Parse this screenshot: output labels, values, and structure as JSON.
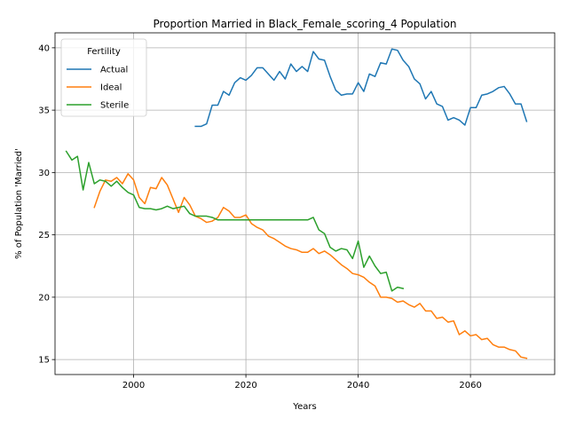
{
  "chart_data": {
    "type": "line",
    "title": "Proportion Married in Black_Female_scoring_4 Population",
    "xlabel": "Years",
    "ylabel": "% of Population 'Married'",
    "xlim": [
      1986,
      2075
    ],
    "ylim": [
      13.8,
      41.2
    ],
    "xticks": [
      2000,
      2020,
      2040,
      2060
    ],
    "yticks": [
      15,
      20,
      25,
      30,
      35,
      40
    ],
    "grid": true,
    "legend": {
      "title": "Fertility",
      "placement": "top-left"
    },
    "series": [
      {
        "name": "Actual",
        "color": "#1f77b4",
        "x": [
          2011,
          2012,
          2013,
          2014,
          2015,
          2016,
          2017,
          2018,
          2019,
          2020,
          2021,
          2022,
          2023,
          2024,
          2025,
          2026,
          2027,
          2028,
          2029,
          2030,
          2031,
          2032,
          2033,
          2034,
          2035,
          2036,
          2037,
          2038,
          2039,
          2040,
          2041,
          2042,
          2043,
          2044,
          2045,
          2046,
          2047,
          2048,
          2049,
          2050,
          2051,
          2052,
          2053,
          2054,
          2055,
          2056,
          2057,
          2058,
          2059,
          2060,
          2061,
          2062,
          2063,
          2064,
          2065,
          2066,
          2067,
          2068,
          2069,
          2070
        ],
        "y": [
          33.7,
          33.7,
          33.9,
          35.4,
          35.4,
          36.5,
          36.2,
          37.2,
          37.6,
          37.4,
          37.8,
          38.4,
          38.4,
          37.9,
          37.4,
          38.1,
          37.5,
          38.7,
          38.1,
          38.5,
          38.1,
          39.7,
          39.1,
          39.0,
          37.7,
          36.6,
          36.2,
          36.3,
          36.3,
          37.2,
          36.5,
          37.9,
          37.7,
          38.8,
          38.7,
          39.9,
          39.8,
          39.0,
          38.5,
          37.5,
          37.1,
          35.9,
          36.5,
          35.5,
          35.3,
          34.2,
          34.4,
          34.2,
          33.8,
          35.2,
          35.2,
          36.2,
          36.3,
          36.5,
          36.8,
          36.9,
          36.3,
          35.5,
          35.5,
          34.1
        ]
      },
      {
        "name": "Ideal",
        "color": "#ff7f0e",
        "x": [
          1993,
          1994,
          1995,
          1996,
          1997,
          1998,
          1999,
          2000,
          2001,
          2002,
          2003,
          2004,
          2005,
          2006,
          2007,
          2008,
          2009,
          2010,
          2011,
          2012,
          2013,
          2014,
          2015,
          2016,
          2017,
          2018,
          2019,
          2020,
          2021,
          2022,
          2023,
          2024,
          2025,
          2026,
          2027,
          2028,
          2029,
          2030,
          2031,
          2032,
          2033,
          2034,
          2035,
          2036,
          2037,
          2038,
          2039,
          2040,
          2041,
          2042,
          2043,
          2044,
          2045,
          2046,
          2047,
          2048,
          2049,
          2050,
          2051,
          2052,
          2053,
          2054,
          2055,
          2056,
          2057,
          2058,
          2059,
          2060,
          2061,
          2062,
          2063,
          2064,
          2065,
          2066,
          2067,
          2068,
          2069,
          2070
        ],
        "y": [
          27.2,
          28.5,
          29.4,
          29.3,
          29.6,
          29.1,
          29.9,
          29.4,
          28.0,
          27.5,
          28.8,
          28.7,
          29.6,
          29.0,
          27.9,
          26.8,
          28.0,
          27.4,
          26.5,
          26.3,
          26.0,
          26.1,
          26.4,
          27.2,
          26.9,
          26.4,
          26.4,
          26.6,
          25.9,
          25.6,
          25.4,
          24.9,
          24.7,
          24.4,
          24.1,
          23.9,
          23.8,
          23.6,
          23.6,
          23.9,
          23.5,
          23.7,
          23.4,
          23.0,
          22.6,
          22.3,
          21.9,
          21.8,
          21.6,
          21.2,
          20.9,
          20.0,
          20.0,
          19.9,
          19.6,
          19.7,
          19.4,
          19.2,
          19.5,
          18.9,
          18.9,
          18.3,
          18.4,
          18.0,
          18.1,
          17.0,
          17.3,
          16.9,
          17.0,
          16.6,
          16.7,
          16.2,
          16.0,
          16.0,
          15.8,
          15.7,
          15.2,
          15.1
        ]
      },
      {
        "name": "Sterile",
        "color": "#2ca02c",
        "x": [
          1988,
          1989,
          1990,
          1991,
          1992,
          1993,
          1994,
          1995,
          1996,
          1997,
          1998,
          1999,
          2000,
          2001,
          2002,
          2003,
          2004,
          2005,
          2006,
          2007,
          2008,
          2009,
          2010,
          2011,
          2012,
          2013,
          2014,
          2015,
          2016,
          2017,
          2018,
          2019,
          2020,
          2021,
          2022,
          2023,
          2024,
          2025,
          2026,
          2027,
          2028,
          2029,
          2030,
          2031,
          2032,
          2033,
          2034,
          2035,
          2036,
          2037,
          2038,
          2039,
          2040,
          2041,
          2042,
          2043,
          2044,
          2045,
          2046,
          2047,
          2048
        ],
        "y": [
          31.7,
          31.0,
          31.3,
          28.6,
          30.8,
          29.1,
          29.4,
          29.3,
          28.9,
          29.3,
          28.8,
          28.4,
          28.2,
          27.2,
          27.1,
          27.1,
          27.0,
          27.1,
          27.3,
          27.1,
          27.2,
          27.3,
          26.7,
          26.5,
          26.5,
          26.5,
          26.4,
          26.2,
          26.2,
          26.2,
          26.2,
          26.2,
          26.2,
          26.2,
          26.2,
          26.2,
          26.2,
          26.2,
          26.2,
          26.2,
          26.2,
          26.2,
          26.2,
          26.2,
          26.4,
          25.4,
          25.1,
          24.0,
          23.7,
          23.9,
          23.8,
          23.1,
          24.5,
          22.4,
          23.3,
          22.5,
          21.9,
          22.0,
          20.5,
          20.8,
          20.7
        ]
      }
    ]
  }
}
